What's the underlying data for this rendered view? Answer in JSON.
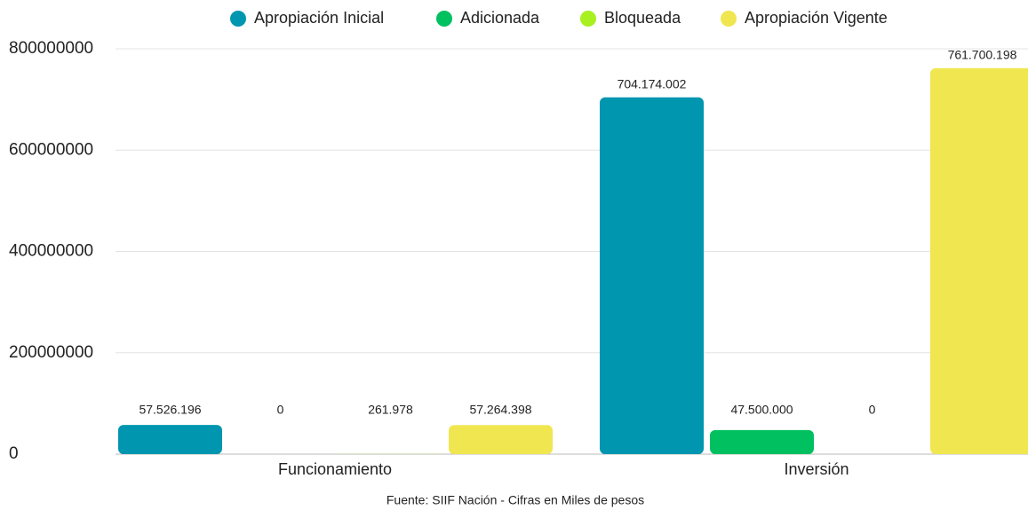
{
  "chart_data": {
    "type": "bar",
    "categories": [
      "Funcionamiento",
      "Inversión"
    ],
    "series": [
      {
        "name": "Apropiación Inicial",
        "color": "#0096b0",
        "values": [
          57526196,
          704174002
        ],
        "value_labels": [
          "57.526.196",
          "704.174.002"
        ]
      },
      {
        "name": "Adicionada",
        "color": "#00c060",
        "values": [
          0,
          47500000
        ],
        "value_labels": [
          "0",
          "47.500.000"
        ]
      },
      {
        "name": "Bloqueada",
        "color": "#a8f020",
        "values": [
          261978,
          0
        ],
        "value_labels": [
          "261.978",
          "0"
        ]
      },
      {
        "name": "Apropiación Vigente",
        "color": "#f0e650",
        "values": [
          57264398,
          761700198
        ],
        "value_labels": [
          "57.264.398",
          "761.700.198"
        ]
      }
    ],
    "ylim": [
      0,
      800000000
    ],
    "yticks": [
      0,
      200000000,
      400000000,
      600000000,
      800000000
    ],
    "grid": true,
    "legend": "top",
    "source": "Fuente: SIIF Nación - Cifras en Miles de pesos"
  }
}
